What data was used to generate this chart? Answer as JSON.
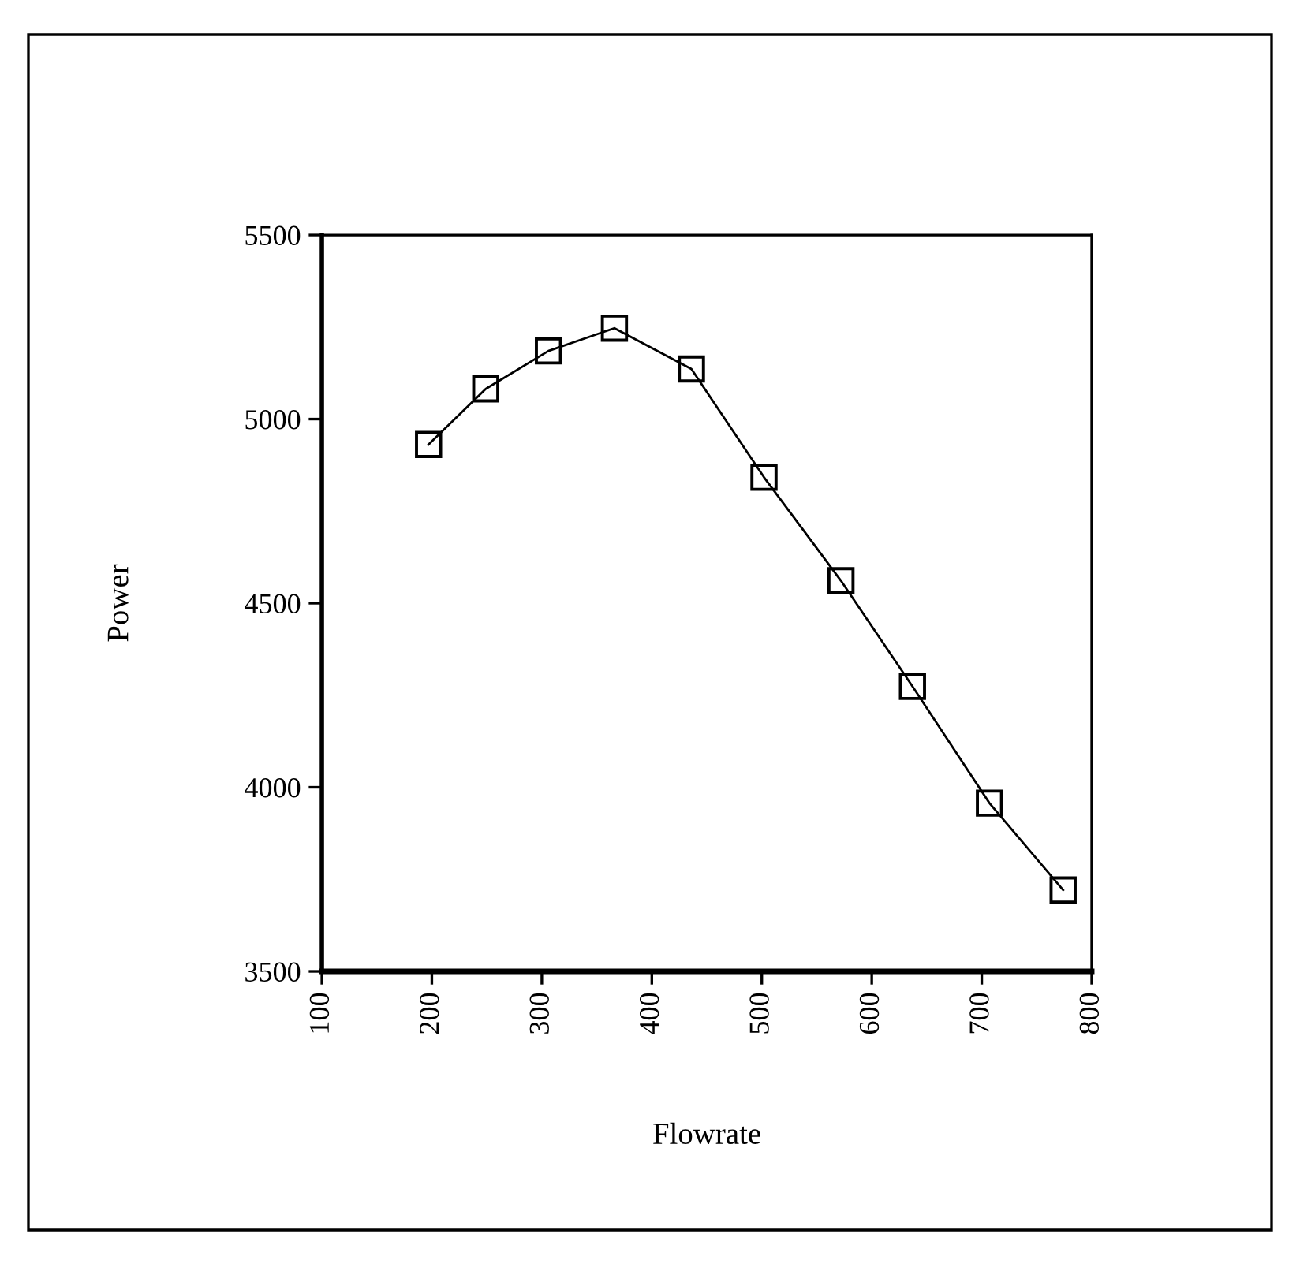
{
  "chart_data": {
    "type": "line",
    "xlabel": "Flowrate",
    "ylabel": "Power",
    "x": [
      197,
      249,
      306,
      366,
      436,
      502,
      572,
      637,
      707,
      774
    ],
    "series": [
      {
        "color": "#000000",
        "values": [
          4931,
          5082,
          5185,
          5247,
          5136,
          4842,
          4561,
          4274,
          3957,
          3721
        ]
      }
    ],
    "xlim": [
      100,
      800
    ],
    "xticks": [
      100,
      200,
      300,
      400,
      500,
      600,
      700,
      800
    ],
    "ylim": [
      3500,
      5500
    ],
    "yticks": [
      3500,
      4000,
      4500,
      5000,
      5500
    ],
    "marker": "square",
    "line_style": "solid",
    "grid": false,
    "legend": false
  }
}
